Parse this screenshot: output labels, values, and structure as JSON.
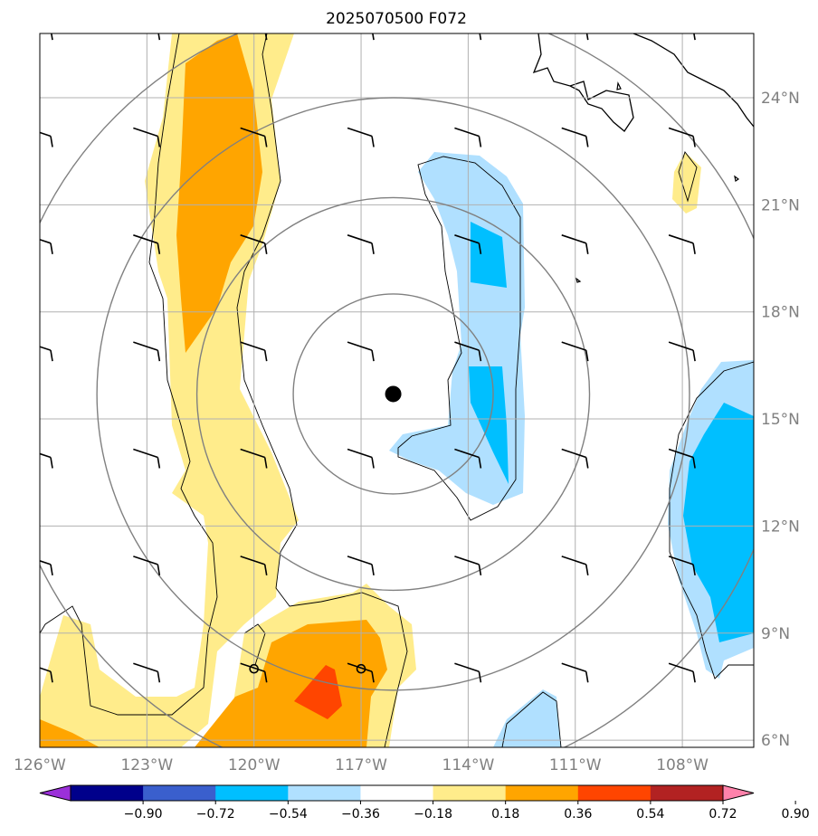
{
  "title": "2025070500 F072",
  "map": {
    "lon_range": [
      -126,
      -106
    ],
    "lat_range": [
      5.8,
      25.8
    ],
    "lon_ticks": [
      {
        "value": -126,
        "label": "126°W"
      },
      {
        "value": -123,
        "label": "123°W"
      },
      {
        "value": -120,
        "label": "120°W"
      },
      {
        "value": -117,
        "label": "117°W"
      },
      {
        "value": -114,
        "label": "114°W"
      },
      {
        "value": -111,
        "label": "111°W"
      },
      {
        "value": -108,
        "label": "108°W"
      }
    ],
    "lat_ticks": [
      {
        "value": 6,
        "label": "6°N"
      },
      {
        "value": 9,
        "label": "9°N"
      },
      {
        "value": 12,
        "label": "12°N"
      },
      {
        "value": 15,
        "label": "15°N"
      },
      {
        "value": 18,
        "label": "18°N"
      },
      {
        "value": 21,
        "label": "21°N"
      },
      {
        "value": 24,
        "label": "24°N"
      }
    ],
    "storm_center": {
      "lon": -116.1,
      "lat": 15.7
    },
    "range_rings_deg": [
      2.8,
      5.5,
      8.3,
      11.0
    ],
    "wind_barb_lons": [
      -126,
      -123,
      -120,
      -117,
      -114,
      -111,
      -108
    ],
    "wind_barb_lats": [
      8,
      11,
      14,
      17,
      20,
      23,
      26
    ],
    "small_circles": [
      {
        "lon": -120,
        "lat": 8
      },
      {
        "lon": -117,
        "lat": 8
      }
    ]
  },
  "colorbar": {
    "ticks": [
      "−0.90",
      "−0.72",
      "−0.54",
      "−0.36",
      "−0.18",
      "0.18",
      "0.36",
      "0.54",
      "0.72",
      "0.90"
    ],
    "colors": [
      "#9b30d9",
      "#00008b",
      "#3a5fcd",
      "#00bfff",
      "#b0e0ff",
      "#ffffff",
      "#ffec8b",
      "#ffa500",
      "#ff4500",
      "#b22222",
      "#ff82ab"
    ]
  },
  "colors": {
    "neg_light": "#b0e0ff",
    "neg_mid": "#00bfff",
    "pos_light": "#ffec8b",
    "pos_mid": "#ffa500",
    "pos_high": "#ff4500",
    "grid": "#b0b0b0",
    "rings": "#808080"
  }
}
